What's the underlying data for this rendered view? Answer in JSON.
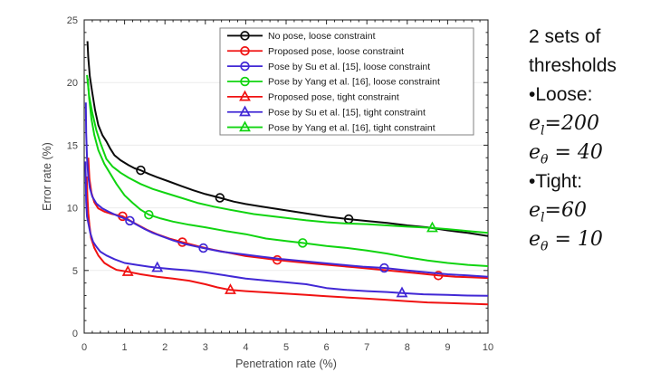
{
  "side_panel": {
    "lines": [
      {
        "t": "2 sets of"
      },
      {
        "t": "thresholds"
      },
      {
        "t": "•Loose:"
      },
      {
        "m": {
          "base": "e",
          "sub": "l",
          "rest": "=200"
        }
      },
      {
        "m": {
          "base": "e",
          "sub": "θ",
          "rest": " = 40"
        }
      },
      {
        "t": "•Tight:"
      },
      {
        "m": {
          "base": "e",
          "sub": "l",
          "rest": "=60"
        }
      },
      {
        "m": {
          "base": "e",
          "sub": "θ",
          "rest": " = 10"
        }
      }
    ]
  },
  "colors": {
    "black_series": "#0a0a0a",
    "red_series": "#f01212",
    "blue_series": "#4128d5",
    "green_series": "#10d410",
    "grid": "#ebebeb",
    "axis": "#262626",
    "tick_text": "#464646",
    "legend_border": "#808080",
    "background": "#ffffff"
  },
  "chart_data": {
    "type": "line",
    "title": "",
    "xlabel": "Penetration rate (%)",
    "ylabel": "Error rate (%)",
    "xlim": [
      0,
      10
    ],
    "ylim": [
      0,
      25
    ],
    "x_tick_labels": [
      "0",
      "1",
      "2",
      "3",
      "4",
      "5",
      "6",
      "7",
      "8",
      "9",
      "10"
    ],
    "y_tick_labels": [
      "0",
      "5",
      "10",
      "15",
      "20",
      "25"
    ],
    "x_minor_step": 0.2,
    "y_minor_step": 1,
    "grid": "horizontal-only",
    "gridline_values": [
      5,
      10,
      15,
      20
    ],
    "legend_position": "top-inside",
    "series": [
      {
        "name": "No pose, loose constraint",
        "color": "#0a0a0a",
        "marker": "circle",
        "points": [
          [
            0.08,
            23.3
          ],
          [
            0.1,
            22.0
          ],
          [
            0.14,
            20.5
          ],
          [
            0.2,
            19.2
          ],
          [
            0.27,
            17.8
          ],
          [
            0.35,
            16.6
          ],
          [
            0.45,
            15.8
          ],
          [
            0.55,
            15.3
          ],
          [
            0.65,
            14.7
          ],
          [
            0.75,
            14.2
          ],
          [
            0.9,
            13.8
          ],
          [
            1.1,
            13.4
          ],
          [
            1.25,
            13.15
          ],
          [
            1.4,
            13.0
          ],
          [
            1.6,
            12.7
          ],
          [
            1.8,
            12.45
          ],
          [
            2.1,
            12.1
          ],
          [
            2.4,
            11.75
          ],
          [
            2.7,
            11.4
          ],
          [
            3.0,
            11.1
          ],
          [
            3.36,
            10.8
          ],
          [
            3.7,
            10.5
          ],
          [
            4.0,
            10.3
          ],
          [
            4.4,
            10.1
          ],
          [
            4.8,
            9.9
          ],
          [
            5.2,
            9.7
          ],
          [
            5.6,
            9.5
          ],
          [
            6.0,
            9.3
          ],
          [
            6.55,
            9.1
          ],
          [
            7.0,
            8.95
          ],
          [
            7.5,
            8.8
          ],
          [
            8.0,
            8.6
          ],
          [
            8.5,
            8.45
          ],
          [
            9.0,
            8.2
          ],
          [
            9.5,
            8.0
          ],
          [
            10.0,
            7.75
          ]
        ],
        "marker_points": [
          [
            1.4,
            13.0
          ],
          [
            3.36,
            10.8
          ],
          [
            6.55,
            9.1
          ]
        ]
      },
      {
        "name": "Proposed pose, loose constraint",
        "color": "#f01212",
        "marker": "circle",
        "points": [
          [
            0.1,
            14.0
          ],
          [
            0.13,
            12.3
          ],
          [
            0.18,
            11.2
          ],
          [
            0.25,
            10.45
          ],
          [
            0.35,
            9.95
          ],
          [
            0.5,
            9.7
          ],
          [
            0.7,
            9.5
          ],
          [
            0.95,
            9.33
          ],
          [
            1.15,
            8.95
          ],
          [
            1.35,
            8.6
          ],
          [
            1.55,
            8.25
          ],
          [
            1.8,
            7.9
          ],
          [
            2.1,
            7.55
          ],
          [
            2.43,
            7.26
          ],
          [
            2.8,
            6.95
          ],
          [
            3.2,
            6.65
          ],
          [
            3.6,
            6.4
          ],
          [
            4.0,
            6.15
          ],
          [
            4.4,
            6.0
          ],
          [
            4.78,
            5.84
          ],
          [
            5.2,
            5.7
          ],
          [
            5.7,
            5.55
          ],
          [
            6.2,
            5.4
          ],
          [
            6.7,
            5.25
          ],
          [
            7.2,
            5.1
          ],
          [
            7.7,
            4.95
          ],
          [
            8.2,
            4.8
          ],
          [
            8.77,
            4.6
          ],
          [
            9.2,
            4.5
          ],
          [
            9.6,
            4.45
          ],
          [
            10.0,
            4.4
          ]
        ],
        "marker_points": [
          [
            0.95,
            9.33
          ],
          [
            2.43,
            7.26
          ],
          [
            4.78,
            5.84
          ],
          [
            8.77,
            4.6
          ]
        ]
      },
      {
        "name": "Pose by Su et al. [15], loose constraint",
        "color": "#4128d5",
        "marker": "circle",
        "points": [
          [
            0.04,
            18.4
          ],
          [
            0.05,
            16.0
          ],
          [
            0.07,
            14.0
          ],
          [
            0.1,
            12.5
          ],
          [
            0.14,
            11.6
          ],
          [
            0.2,
            10.9
          ],
          [
            0.3,
            10.35
          ],
          [
            0.45,
            9.95
          ],
          [
            0.6,
            9.7
          ],
          [
            0.8,
            9.4
          ],
          [
            1.0,
            9.15
          ],
          [
            1.13,
            8.97
          ],
          [
            1.3,
            8.65
          ],
          [
            1.5,
            8.3
          ],
          [
            1.7,
            8.0
          ],
          [
            1.9,
            7.75
          ],
          [
            2.2,
            7.4
          ],
          [
            2.5,
            7.1
          ],
          [
            2.95,
            6.79
          ],
          [
            3.4,
            6.5
          ],
          [
            3.9,
            6.3
          ],
          [
            4.4,
            6.1
          ],
          [
            4.9,
            5.9
          ],
          [
            5.4,
            5.75
          ],
          [
            5.9,
            5.6
          ],
          [
            6.4,
            5.45
          ],
          [
            6.9,
            5.3
          ],
          [
            7.43,
            5.2
          ],
          [
            8.0,
            5.0
          ],
          [
            8.5,
            4.85
          ],
          [
            9.0,
            4.7
          ],
          [
            9.5,
            4.6
          ],
          [
            10.0,
            4.5
          ]
        ],
        "marker_points": [
          [
            1.13,
            8.97
          ],
          [
            2.95,
            6.79
          ],
          [
            7.43,
            5.2
          ]
        ]
      },
      {
        "name": "Pose by Yang et al. [16], loose constraint",
        "color": "#10d410",
        "marker": "circle",
        "points": [
          [
            0.09,
            20.3
          ],
          [
            0.12,
            18.8
          ],
          [
            0.18,
            17.1
          ],
          [
            0.25,
            15.8
          ],
          [
            0.35,
            14.6
          ],
          [
            0.5,
            13.5
          ],
          [
            0.65,
            12.7
          ],
          [
            0.8,
            11.9
          ],
          [
            1.0,
            11.0
          ],
          [
            1.2,
            10.4
          ],
          [
            1.4,
            9.85
          ],
          [
            1.6,
            9.45
          ],
          [
            1.9,
            9.15
          ],
          [
            2.2,
            8.9
          ],
          [
            2.6,
            8.65
          ],
          [
            3.0,
            8.45
          ],
          [
            3.5,
            8.15
          ],
          [
            4.0,
            7.9
          ],
          [
            4.5,
            7.55
          ],
          [
            5.0,
            7.35
          ],
          [
            5.41,
            7.2
          ],
          [
            6.0,
            6.95
          ],
          [
            6.5,
            6.8
          ],
          [
            7.0,
            6.6
          ],
          [
            7.5,
            6.35
          ],
          [
            8.0,
            6.05
          ],
          [
            8.5,
            5.8
          ],
          [
            9.0,
            5.6
          ],
          [
            9.5,
            5.45
          ],
          [
            10.0,
            5.35
          ]
        ],
        "marker_points": [
          [
            1.6,
            9.45
          ],
          [
            5.41,
            7.2
          ]
        ]
      },
      {
        "name": "Proposed pose, tight constraint",
        "color": "#f01212",
        "marker": "triangle",
        "points": [
          [
            0.06,
            12.5
          ],
          [
            0.08,
            10.8
          ],
          [
            0.1,
            9.6
          ],
          [
            0.13,
            8.6
          ],
          [
            0.17,
            7.6
          ],
          [
            0.25,
            6.8
          ],
          [
            0.35,
            6.2
          ],
          [
            0.5,
            5.6
          ],
          [
            0.65,
            5.3
          ],
          [
            0.8,
            5.05
          ],
          [
            1.08,
            4.9
          ],
          [
            1.4,
            4.7
          ],
          [
            1.8,
            4.5
          ],
          [
            2.2,
            4.35
          ],
          [
            2.6,
            4.18
          ],
          [
            3.0,
            3.9
          ],
          [
            3.3,
            3.65
          ],
          [
            3.62,
            3.45
          ],
          [
            4.0,
            3.35
          ],
          [
            4.5,
            3.25
          ],
          [
            5.0,
            3.15
          ],
          [
            5.5,
            3.05
          ],
          [
            6.0,
            2.95
          ],
          [
            6.5,
            2.85
          ],
          [
            7.0,
            2.75
          ],
          [
            7.5,
            2.65
          ],
          [
            8.0,
            2.55
          ],
          [
            8.5,
            2.45
          ],
          [
            9.0,
            2.4
          ],
          [
            9.5,
            2.35
          ],
          [
            10.0,
            2.3
          ]
        ],
        "marker_points": [
          [
            1.08,
            4.9
          ],
          [
            3.62,
            3.45
          ]
        ]
      },
      {
        "name": "Pose by Su et al. [15], tight constraint",
        "color": "#4128d5",
        "marker": "triangle",
        "points": [
          [
            0.03,
            13.7
          ],
          [
            0.04,
            12.0
          ],
          [
            0.05,
            10.5
          ],
          [
            0.07,
            9.3
          ],
          [
            0.1,
            8.8
          ],
          [
            0.15,
            8.0
          ],
          [
            0.22,
            7.3
          ],
          [
            0.3,
            6.9
          ],
          [
            0.4,
            6.5
          ],
          [
            0.55,
            6.2
          ],
          [
            0.75,
            5.9
          ],
          [
            1.0,
            5.6
          ],
          [
            1.3,
            5.45
          ],
          [
            1.6,
            5.3
          ],
          [
            1.81,
            5.22
          ],
          [
            2.2,
            5.1
          ],
          [
            2.6,
            5.0
          ],
          [
            3.0,
            4.85
          ],
          [
            3.5,
            4.6
          ],
          [
            4.0,
            4.35
          ],
          [
            4.5,
            4.2
          ],
          [
            5.0,
            4.05
          ],
          [
            5.5,
            3.9
          ],
          [
            6.0,
            3.6
          ],
          [
            6.5,
            3.45
          ],
          [
            7.0,
            3.35
          ],
          [
            7.5,
            3.28
          ],
          [
            7.87,
            3.2
          ],
          [
            8.4,
            3.1
          ],
          [
            9.0,
            3.05
          ],
          [
            9.5,
            3.0
          ],
          [
            10.0,
            2.98
          ]
        ],
        "marker_points": [
          [
            1.81,
            5.22
          ],
          [
            7.87,
            3.2
          ]
        ]
      },
      {
        "name": "Pose by Yang et al. [16], tight constraint",
        "color": "#10d410",
        "marker": "triangle",
        "points": [
          [
            0.07,
            20.6
          ],
          [
            0.12,
            19.0
          ],
          [
            0.2,
            17.6
          ],
          [
            0.3,
            16.2
          ],
          [
            0.4,
            15.2
          ],
          [
            0.55,
            13.9
          ],
          [
            0.7,
            13.3
          ],
          [
            0.9,
            12.8
          ],
          [
            1.1,
            12.4
          ],
          [
            1.4,
            11.9
          ],
          [
            1.7,
            11.5
          ],
          [
            2.0,
            11.2
          ],
          [
            2.4,
            10.8
          ],
          [
            2.8,
            10.4
          ],
          [
            3.2,
            10.1
          ],
          [
            3.6,
            9.85
          ],
          [
            4.2,
            9.5
          ],
          [
            4.6,
            9.35
          ],
          [
            5.0,
            9.2
          ],
          [
            5.5,
            9.0
          ],
          [
            6.0,
            8.85
          ],
          [
            6.5,
            8.75
          ],
          [
            7.0,
            8.7
          ],
          [
            7.5,
            8.6
          ],
          [
            8.0,
            8.5
          ],
          [
            8.62,
            8.4
          ],
          [
            9.0,
            8.3
          ],
          [
            9.5,
            8.15
          ],
          [
            10.0,
            8.0
          ]
        ],
        "marker_points": [
          [
            8.62,
            8.4
          ]
        ]
      }
    ]
  }
}
